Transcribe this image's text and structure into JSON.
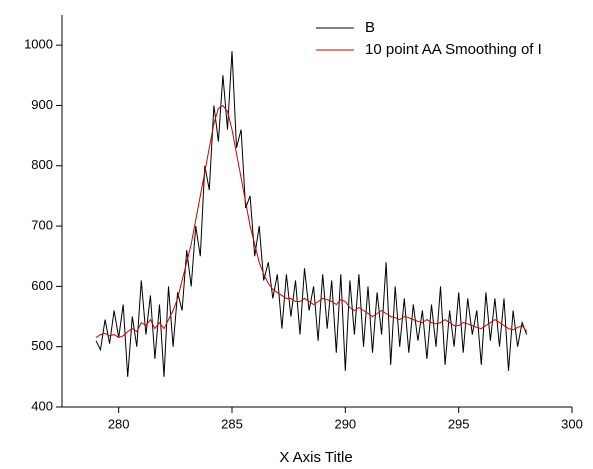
{
  "chart_data": {
    "type": "line",
    "xlabel": "X Axis Title",
    "x": [
      279.0,
      279.2,
      279.4,
      279.6,
      279.8,
      280.0,
      280.2,
      280.4,
      280.6,
      280.8,
      281.0,
      281.2,
      281.4,
      281.6,
      281.8,
      282.0,
      282.2,
      282.4,
      282.6,
      282.8,
      283.0,
      283.2,
      283.4,
      283.6,
      283.8,
      284.0,
      284.2,
      284.4,
      284.6,
      284.8,
      285.0,
      285.2,
      285.4,
      285.6,
      285.8,
      286.0,
      286.2,
      286.4,
      286.6,
      286.8,
      287.0,
      287.2,
      287.4,
      287.6,
      287.8,
      288.0,
      288.2,
      288.4,
      288.6,
      288.8,
      289.0,
      289.2,
      289.4,
      289.6,
      289.8,
      290.0,
      290.2,
      290.4,
      290.6,
      290.8,
      291.0,
      291.2,
      291.4,
      291.6,
      291.8,
      292.0,
      292.2,
      292.4,
      292.6,
      292.8,
      293.0,
      293.2,
      293.4,
      293.6,
      293.8,
      294.0,
      294.2,
      294.4,
      294.6,
      294.8,
      295.0,
      295.2,
      295.4,
      295.6,
      295.8,
      296.0,
      296.2,
      296.4,
      296.6,
      296.8,
      297.0,
      297.2,
      297.4,
      297.6,
      297.8,
      298.0
    ],
    "series": [
      {
        "name": "B",
        "color": "#000000",
        "values": [
          510,
          495,
          545,
          505,
          560,
          515,
          570,
          450,
          550,
          500,
          610,
          520,
          585,
          480,
          570,
          450,
          600,
          500,
          590,
          560,
          660,
          600,
          700,
          650,
          800,
          760,
          900,
          840,
          950,
          860,
          990,
          830,
          860,
          730,
          750,
          650,
          700,
          610,
          640,
          580,
          620,
          530,
          620,
          550,
          610,
          520,
          630,
          560,
          600,
          510,
          620,
          530,
          610,
          490,
          620,
          460,
          610,
          520,
          620,
          500,
          600,
          490,
          590,
          520,
          640,
          470,
          600,
          500,
          580,
          490,
          570,
          510,
          560,
          480,
          570,
          500,
          600,
          470,
          560,
          500,
          590,
          490,
          580,
          520,
          560,
          470,
          590,
          510,
          580,
          500,
          580,
          460,
          560,
          500,
          540,
          520
        ]
      },
      {
        "name": "10 point AA Smoothing of I",
        "color": "#d00000",
        "values": [
          515,
          520,
          522,
          518,
          520,
          515,
          518,
          525,
          530,
          525,
          540,
          535,
          545,
          530,
          540,
          530,
          545,
          560,
          580,
          610,
          640,
          670,
          710,
          750,
          790,
          830,
          870,
          895,
          900,
          890,
          860,
          820,
          780,
          740,
          700,
          670,
          640,
          620,
          605,
          595,
          590,
          585,
          580,
          580,
          575,
          575,
          580,
          575,
          570,
          575,
          580,
          578,
          575,
          570,
          578,
          575,
          565,
          560,
          565,
          560,
          555,
          550,
          555,
          560,
          555,
          550,
          548,
          545,
          550,
          548,
          545,
          542,
          540,
          545,
          540,
          538,
          540,
          545,
          540,
          535,
          535,
          540,
          538,
          535,
          532,
          530,
          535,
          540,
          545,
          540,
          535,
          530,
          528,
          532,
          535,
          525
        ]
      }
    ],
    "xlim": [
      277.5,
      300
    ],
    "xticks": [
      280,
      285,
      290,
      295,
      300
    ],
    "ylim": [
      400,
      1050
    ],
    "yticks": [
      400,
      500,
      600,
      700,
      800,
      900,
      1000
    ],
    "legend": "upper right",
    "grid": false
  }
}
